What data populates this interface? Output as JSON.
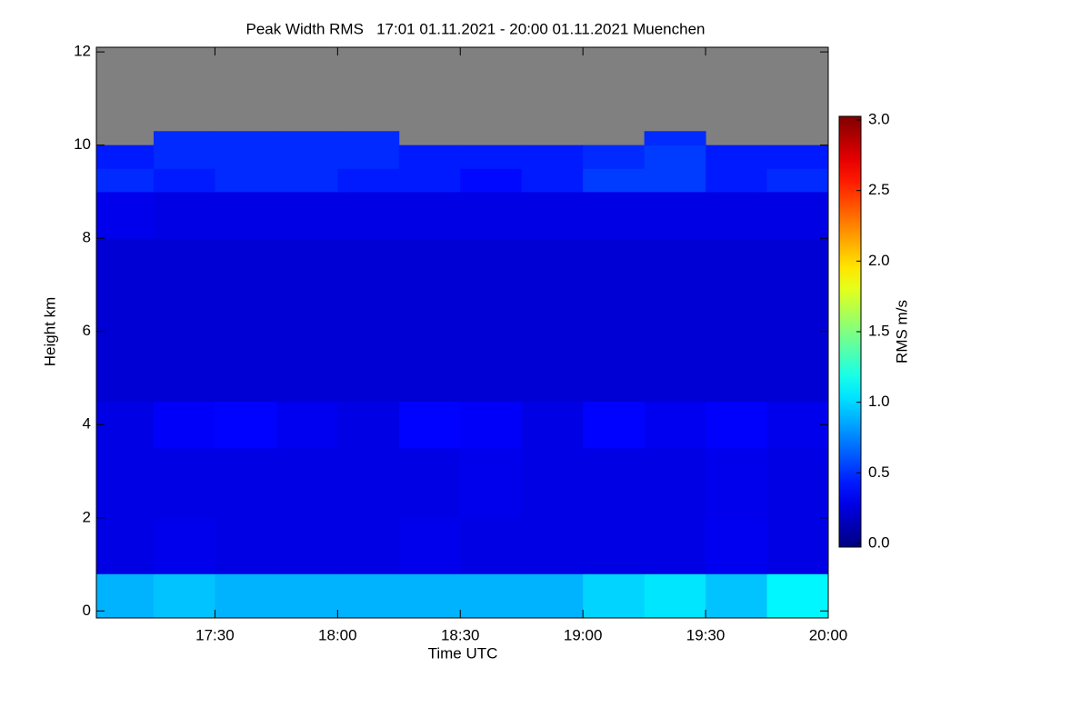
{
  "chart_data": {
    "type": "heatmap",
    "title": "Peak Width RMS   17:01 01.11.2021 - 20:00 01.11.2021 Muenchen",
    "x_label": "Time UTC",
    "y_label": "Height km",
    "colorbar_label": "RMS m/s",
    "colormap": "jet",
    "missing_color": "#808080",
    "xlim": [
      1021,
      1200
    ],
    "xticks": [
      {
        "value": 1050,
        "label": "17:30"
      },
      {
        "value": 1080,
        "label": "18:00"
      },
      {
        "value": 1110,
        "label": "18:30"
      },
      {
        "value": 1140,
        "label": "19:00"
      },
      {
        "value": 1170,
        "label": "19:30"
      },
      {
        "value": 1200,
        "label": "20:00"
      }
    ],
    "ylim": [
      -0.15,
      12.1
    ],
    "yticks": [
      0,
      2,
      4,
      6,
      8,
      10,
      12
    ],
    "clim": [
      0,
      3
    ],
    "cticks": [
      {
        "value": 0,
        "label": "0.0"
      },
      {
        "value": 0.5,
        "label": "0.5"
      },
      {
        "value": 1,
        "label": "1.0"
      },
      {
        "value": 1.5,
        "label": "1.5"
      },
      {
        "value": 2,
        "label": "2.0"
      },
      {
        "value": 2.5,
        "label": "2.5"
      },
      {
        "value": 3,
        "label": "3.0"
      }
    ],
    "xbins": [
      1021,
      1035,
      1050,
      1065,
      1080,
      1095,
      1110,
      1125,
      1140,
      1155,
      1170,
      1185,
      1200
    ],
    "ybins": [
      -0.15,
      0.8,
      2,
      3.5,
      4.5,
      8,
      9,
      9.5,
      10,
      10.3,
      12.1
    ],
    "values": [
      [
        0.9,
        0.95,
        0.9,
        0.9,
        0.9,
        0.9,
        0.9,
        0.9,
        1.0,
        1.05,
        0.95,
        1.1
      ],
      [
        0.3,
        0.32,
        0.3,
        0.3,
        0.3,
        0.32,
        0.3,
        0.3,
        0.3,
        0.3,
        0.33,
        0.3
      ],
      [
        0.3,
        0.3,
        0.3,
        0.3,
        0.3,
        0.3,
        0.32,
        0.3,
        0.3,
        0.3,
        0.32,
        0.3
      ],
      [
        0.3,
        0.36,
        0.38,
        0.33,
        0.3,
        0.38,
        0.36,
        0.3,
        0.38,
        0.33,
        0.37,
        0.32
      ],
      [
        0.25,
        0.25,
        0.25,
        0.25,
        0.25,
        0.25,
        0.25,
        0.25,
        0.25,
        0.25,
        0.25,
        0.25
      ],
      [
        0.32,
        0.3,
        0.3,
        0.3,
        0.3,
        0.3,
        0.3,
        0.3,
        0.3,
        0.3,
        0.3,
        0.3
      ],
      [
        0.5,
        0.45,
        0.5,
        0.5,
        0.45,
        0.45,
        0.4,
        0.45,
        0.55,
        0.55,
        0.45,
        0.5
      ],
      [
        0.45,
        0.5,
        0.5,
        0.5,
        0.5,
        0.45,
        0.45,
        0.45,
        0.5,
        0.55,
        0.45,
        0.45
      ],
      [
        null,
        0.5,
        0.5,
        0.5,
        0.5,
        null,
        null,
        null,
        null,
        0.5,
        null,
        null
      ],
      [
        null,
        null,
        null,
        null,
        null,
        null,
        null,
        null,
        null,
        null,
        null,
        null
      ]
    ]
  }
}
